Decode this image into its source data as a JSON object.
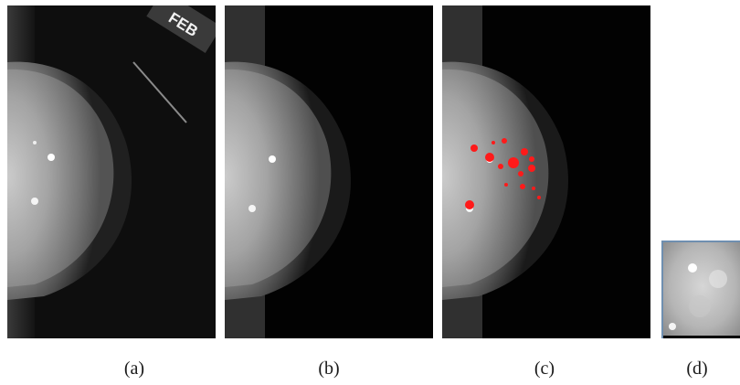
{
  "panels": [
    {
      "id": "a",
      "caption": "(a)",
      "label_text": "FEB"
    },
    {
      "id": "b",
      "caption": "(b)"
    },
    {
      "id": "c",
      "caption": "(c)",
      "marker_color": "#ff1a1a"
    },
    {
      "id": "d",
      "caption": "(d)"
    }
  ],
  "colors": {
    "background": "#ffffff",
    "frame": "#000000",
    "tissue_highlight": "#e8e8e8",
    "marker": "#ff1a1a",
    "patch_border": "#6f8fb0"
  }
}
